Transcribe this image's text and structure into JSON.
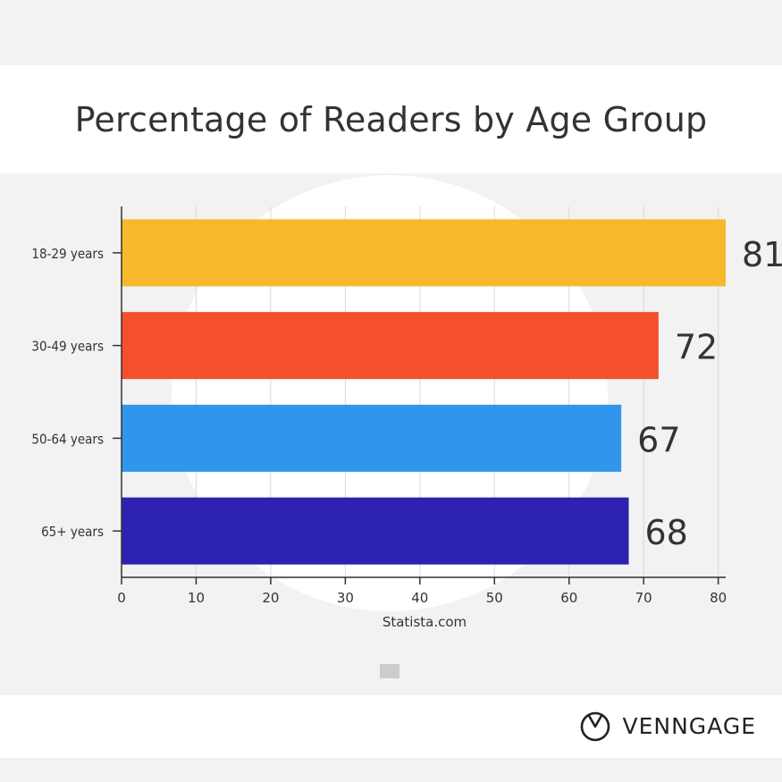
{
  "title": "Percentage of Readers by Age Group",
  "brand": {
    "name": "VENNGAGE",
    "icon": "clock-logo-icon"
  },
  "chart_data": {
    "type": "bar",
    "orientation": "horizontal",
    "categories": [
      "18-29 years",
      "30-49 years",
      "50-64 years",
      "65+ years"
    ],
    "values": [
      81,
      72,
      67,
      68
    ],
    "colors": [
      "#f6b92c",
      "#f54f2c",
      "#3096ec",
      "#2e22b0"
    ],
    "xlabel": "Statista.com",
    "ylabel": "",
    "xlim": [
      0,
      81
    ],
    "xticks": [
      0,
      10,
      20,
      30,
      40,
      50,
      60,
      70,
      80
    ],
    "grid": "vertical"
  }
}
